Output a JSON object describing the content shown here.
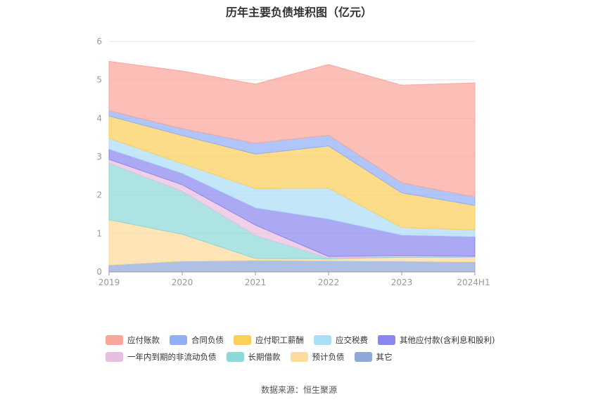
{
  "chart_data": {
    "type": "area",
    "title": "历年主要负债堆积图（亿元）",
    "source": "数据来源：恒生聚源",
    "categories": [
      "2019",
      "2020",
      "2021",
      "2022",
      "2023",
      "2024H1"
    ],
    "ylim": [
      0,
      6
    ],
    "yticks": [
      "0",
      "1",
      "2",
      "3",
      "4",
      "5",
      "6"
    ],
    "grid": true,
    "legend_position": "bottom",
    "series": [
      {
        "name": "其它",
        "color": "#8fa8d8",
        "values": [
          0.18,
          0.28,
          0.3,
          0.29,
          0.28,
          0.26
        ]
      },
      {
        "name": "预计负债",
        "color": "#fddb9c",
        "values": [
          1.18,
          0.7,
          0.05,
          0.05,
          0.1,
          0.12
        ]
      },
      {
        "name": "长期借款",
        "color": "#8dd8d8",
        "values": [
          1.47,
          1.12,
          0.6,
          0.02,
          0.02,
          0.01
        ]
      },
      {
        "name": "一年内到期的非流动负债",
        "color": "#e8bede",
        "values": [
          0.1,
          0.17,
          0.27,
          0.04,
          0.03,
          0.02
        ]
      },
      {
        "name": "其他应付款(含利息和股利)",
        "color": "#8a88f0",
        "values": [
          0.27,
          0.3,
          0.45,
          0.98,
          0.53,
          0.51
        ]
      },
      {
        "name": "应交税费",
        "color": "#acdef5",
        "values": [
          0.28,
          0.25,
          0.5,
          0.8,
          0.2,
          0.17
        ]
      },
      {
        "name": "应付职工薪酬",
        "color": "#fccf5c",
        "values": [
          0.58,
          0.73,
          0.9,
          1.1,
          0.9,
          0.64
        ]
      },
      {
        "name": "合同负债",
        "color": "#92aef7",
        "values": [
          0.14,
          0.18,
          0.28,
          0.28,
          0.26,
          0.22
        ]
      },
      {
        "name": "应付账款",
        "color": "#faa69c",
        "values": [
          1.28,
          1.5,
          1.54,
          1.84,
          2.54,
          2.97
        ]
      }
    ],
    "legend_rows": [
      [
        {
          "name": "应付账款",
          "color": "#faa69c"
        },
        {
          "name": "合同负债",
          "color": "#92aef7"
        },
        {
          "name": "应付职工薪酬",
          "color": "#fccf5c"
        },
        {
          "name": "应交税费",
          "color": "#acdef5"
        },
        {
          "name": "其他应付款(含利息和股利)",
          "color": "#8a88f0"
        }
      ],
      [
        {
          "name": "一年内到期的非流动负债",
          "color": "#e8bede"
        },
        {
          "name": "长期借款",
          "color": "#8dd8d8"
        },
        {
          "name": "预计负债",
          "color": "#fddb9c"
        },
        {
          "name": "其它",
          "color": "#8fa8d8"
        }
      ]
    ]
  }
}
